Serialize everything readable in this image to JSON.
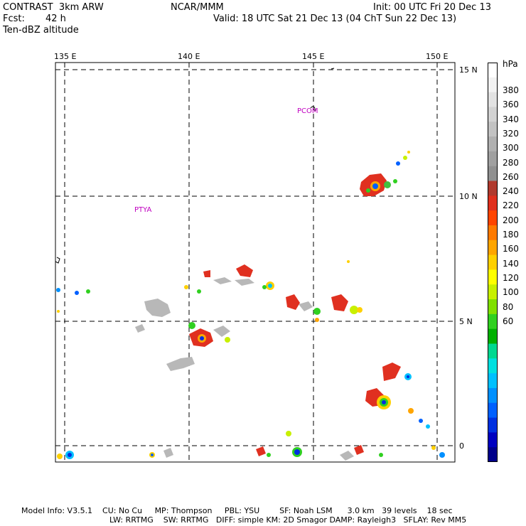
{
  "header": {
    "model": "CONTRAST  3km ARW",
    "org": "NCAR/MMM",
    "init": "Init: 00 UTC Fri 20 Dec 13",
    "fcst_label": "Fcst:",
    "fcst_value": "42 h",
    "valid": "Valid: 18 UTC Sat 21 Dec 13 (04 ChT Sun 22 Dec 13)",
    "field": "Ten-dBZ altitude"
  },
  "map": {
    "lon_labels": [
      "135 E",
      "140 E",
      "145 E",
      "150 E"
    ],
    "lat_labels": [
      "15 N",
      "10 N",
      "5 N",
      "0"
    ],
    "places": [
      "PCOM",
      "PTYA"
    ]
  },
  "colorbar": {
    "unit": "hPa",
    "labels": [
      "380",
      "360",
      "340",
      "320",
      "300",
      "280",
      "260",
      "240",
      "220",
      "200",
      "180",
      "160",
      "140",
      "120",
      "100",
      "80",
      "60"
    ],
    "colors": [
      "#ffffff",
      "#f2f2f2",
      "#e2e2e2",
      "#d2d2d2",
      "#c2c2c2",
      "#b0b0b0",
      "#a0a0a0",
      "#909090",
      "#b03a2e",
      "#e0301e",
      "#ff4500",
      "#ff7a00",
      "#ffa500",
      "#ffd000",
      "#ffff00",
      "#c8f000",
      "#80e000",
      "#30d020",
      "#00b000",
      "#00d890",
      "#00e0e0",
      "#00c0ff",
      "#0090ff",
      "#0060ff",
      "#0030e0",
      "#0000c0",
      "#00008a"
    ]
  },
  "footer": {
    "line1": "Model Info: V3.5.1    CU: No Cu     MP: Thompson     PBL: YSU        SF: Noah LSM      3.0 km   39 levels    18 sec",
    "line2": "LW: RRTMG    SW: RRTMG   DIFF: simple KM: 2D Smagor DAMP: Rayleigh3   SFLAY: Rev MM5"
  }
}
